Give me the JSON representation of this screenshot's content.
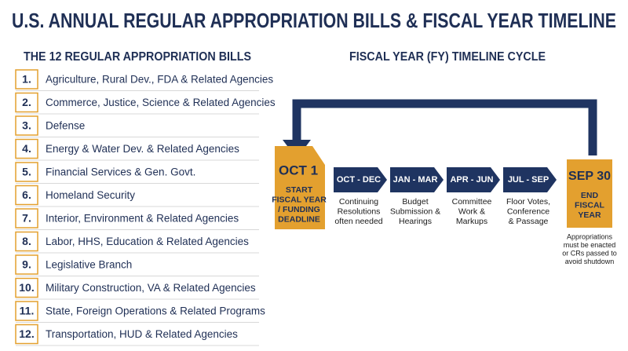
{
  "header": {
    "title": "U.S. ANNUAL REGULAR APPROPRIATION BILLS & FISCAL YEAR TIMELINE"
  },
  "bills": {
    "heading": "THE 12 REGULAR APPROPRIATION BILLS",
    "items": [
      {
        "number": "1.",
        "label": "Agriculture, Rural Dev., FDA & Related Agencies"
      },
      {
        "number": "2.",
        "label": "Commerce, Justice, Science & Related Agencies"
      },
      {
        "number": "3.",
        "label": "Defense"
      },
      {
        "number": "4.",
        "label": "Energy & Water Dev. & Related Agencies"
      },
      {
        "number": "5.",
        "label": "Financial Services & Gen. Govt."
      },
      {
        "number": "6.",
        "label": "Homeland Security"
      },
      {
        "number": "7.",
        "label": "Interior, Environment & Related Agencies"
      },
      {
        "number": "8.",
        "label": "Labor, HHS, Education & Related Agencies"
      },
      {
        "number": "9.",
        "label": "Legislative Branch"
      },
      {
        "number": "10.",
        "label": "Military Construction, VA & Related Agencies"
      },
      {
        "number": "11.",
        "label": "State, Foreign Operations & Related Programs"
      },
      {
        "number": "12.",
        "label": "Transportation, HUD & Related Agencies"
      }
    ]
  },
  "timeline": {
    "heading": "FISCAL YEAR (FY) TIMELINE CYCLE",
    "start": {
      "date": "OCT 1",
      "lines": [
        "START",
        "FISCAL YEAR",
        "/ FUNDING",
        "DEADLINE"
      ]
    },
    "phases": [
      {
        "period": "OCT - DEC",
        "lines": [
          "Continuing",
          "Resolutions",
          "often needed"
        ]
      },
      {
        "period": "JAN - MAR",
        "lines": [
          "Budget",
          "Submission &",
          "Hearings"
        ]
      },
      {
        "period": "APR - JUN",
        "lines": [
          "Committee",
          "Work &",
          "Markups"
        ]
      },
      {
        "period": "JUL - SEP",
        "lines": [
          "Floor Votes,",
          "Conference",
          "& Passage"
        ]
      }
    ],
    "end": {
      "date": "SEP 30",
      "lines": [
        "END",
        "FISCAL",
        "YEAR"
      ]
    },
    "note": [
      "Appropriations",
      "must be enacted",
      "or CRs passed to",
      "avoid shutdown"
    ]
  }
}
